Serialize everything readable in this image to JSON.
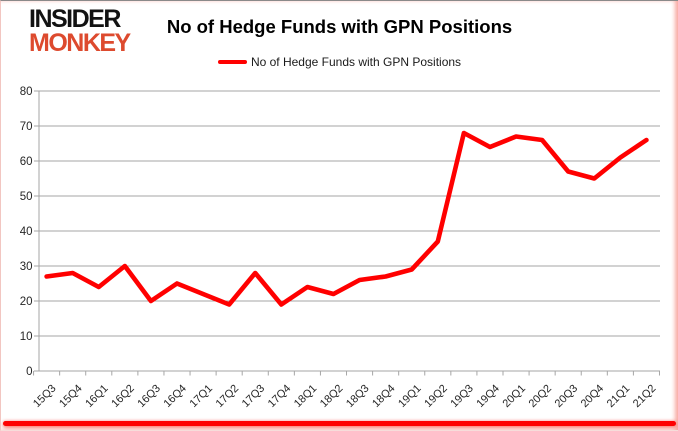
{
  "brand": {
    "line1": "INSIDER",
    "line2": "MONKEY",
    "line1_color": "#121212",
    "line2_color": "#dd4a2e"
  },
  "header": {
    "title": "No of Hedge Funds with GPN Positions"
  },
  "legend": {
    "label": "No of Hedge Funds with GPN Positions",
    "color": "#ff0000"
  },
  "chart_data": {
    "type": "line",
    "title": "No of Hedge Funds with GPN Positions",
    "categories": [
      "15Q3",
      "15Q4",
      "16Q1",
      "16Q2",
      "16Q3",
      "16Q4",
      "17Q1",
      "17Q2",
      "17Q3",
      "17Q4",
      "18Q1",
      "18Q2",
      "18Q3",
      "18Q4",
      "19Q1",
      "19Q2",
      "19Q3",
      "19Q4",
      "20Q1",
      "20Q2",
      "20Q3",
      "20Q4",
      "21Q1",
      "21Q2"
    ],
    "series": [
      {
        "name": "No of Hedge Funds with GPN Positions",
        "values": [
          27,
          28,
          24,
          30,
          20,
          25,
          22,
          19,
          28,
          19,
          24,
          22,
          26,
          27,
          29,
          37,
          68,
          64,
          67,
          66,
          57,
          55,
          61,
          66
        ]
      }
    ],
    "xlabel": "",
    "ylabel": "",
    "ylim": [
      0,
      80
    ],
    "yticks": [
      0,
      10,
      20,
      30,
      40,
      50,
      60,
      70,
      80
    ],
    "grid": true,
    "legend_position": "top",
    "line_color": "#ff0000",
    "grid_color": "#a6a6a6",
    "axis_text_color": "#262626"
  }
}
